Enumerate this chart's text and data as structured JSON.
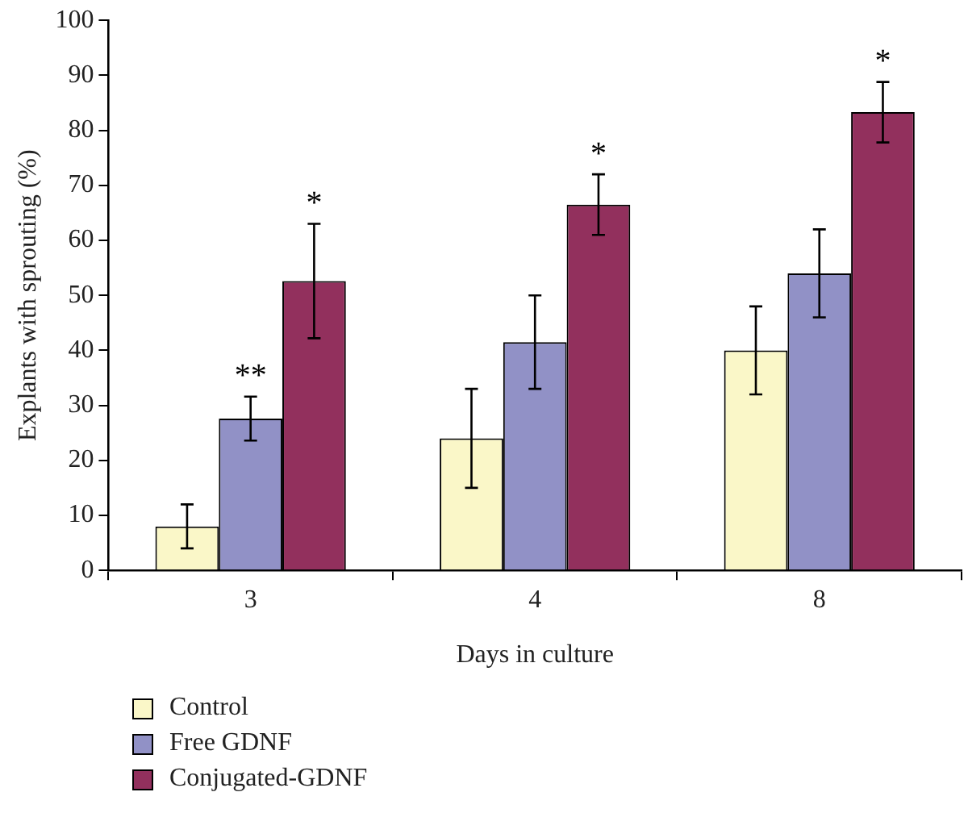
{
  "chart_data": {
    "type": "bar",
    "xlabel": "Days in culture",
    "ylabel": "Explants with sprouting (%)",
    "categories": [
      "3",
      "4",
      "8"
    ],
    "series": [
      {
        "name": "Control",
        "color": "#faf7c8",
        "values": [
          8,
          24,
          40
        ],
        "errors": [
          4,
          9,
          8
        ]
      },
      {
        "name": "Free GDNF",
        "color": "#9191c6",
        "values": [
          27.6,
          41.5,
          54
        ],
        "errors": [
          4,
          8.5,
          8
        ]
      },
      {
        "name": "Conjugated-GDNF",
        "color": "#92305d",
        "values": [
          52.6,
          66.5,
          83.3
        ],
        "errors": [
          10.4,
          5.5,
          5.5
        ]
      }
    ],
    "ylim": [
      0,
      100
    ],
    "yticks": [
      0,
      10,
      20,
      30,
      40,
      50,
      60,
      70,
      80,
      90,
      100
    ],
    "grid": false,
    "legend": "bottom left",
    "annotations": [
      {
        "text": "**",
        "x": "3",
        "y": 27.6
      },
      "*",
      "*",
      "*"
    ]
  }
}
